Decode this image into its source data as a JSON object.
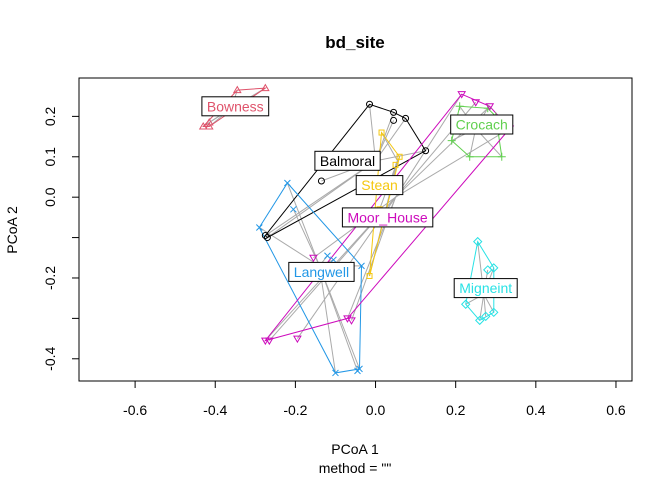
{
  "chart_data": {
    "type": "scatter",
    "title": "bd_site",
    "xlabel": "PCoA 1",
    "ylabel": "PCoA 2",
    "sublabel": "method = \"\"",
    "xlim": [
      -0.74,
      0.64
    ],
    "ylim": [
      -0.455,
      0.295
    ],
    "xticks": [
      -0.6,
      -0.4,
      -0.2,
      0.0,
      0.2,
      0.4,
      0.6
    ],
    "xtick_labels": [
      "-0.6",
      "-0.4",
      "-0.2",
      "0.0",
      "0.2",
      "0.4",
      "0.6"
    ],
    "yticks": [
      -0.4,
      -0.3,
      -0.2,
      -0.1,
      0.0,
      0.1,
      0.2
    ],
    "ytick_labels": [
      "-0.4",
      "",
      "-0.2",
      "",
      "0.0",
      "0.1",
      "0.2"
    ],
    "segment_color": "#aaaaaa",
    "series": [
      {
        "name": "Balmoral",
        "color": "#000000",
        "marker": "circle",
        "centroid": [
          -0.0,
          0.09
        ],
        "label_pos": [
          -0.07,
          0.09
        ],
        "points": [
          [
            -0.27,
            -0.1
          ],
          [
            -0.275,
            -0.095
          ],
          [
            -0.135,
            0.04
          ],
          [
            -0.015,
            0.23
          ],
          [
            0.045,
            0.21
          ],
          [
            0.045,
            0.19
          ],
          [
            0.075,
            0.195
          ],
          [
            0.125,
            0.115
          ]
        ],
        "hull": [
          [
            -0.27,
            -0.1
          ],
          [
            -0.275,
            -0.095
          ],
          [
            -0.015,
            0.23
          ],
          [
            0.045,
            0.21
          ],
          [
            0.075,
            0.195
          ],
          [
            0.125,
            0.115
          ]
        ]
      },
      {
        "name": "Bowness",
        "color": "#df536b",
        "marker": "triangle-up",
        "centroid": [
          -0.36,
          0.22
        ],
        "label_pos": [
          -0.35,
          0.225
        ],
        "points": [
          [
            -0.43,
            0.175
          ],
          [
            -0.415,
            0.175
          ],
          [
            -0.345,
            0.265
          ],
          [
            -0.275,
            0.27
          ],
          [
            -0.415,
            0.185
          ]
        ],
        "hull": [
          [
            -0.43,
            0.175
          ],
          [
            -0.415,
            0.175
          ],
          [
            -0.275,
            0.27
          ],
          [
            -0.345,
            0.265
          ]
        ]
      },
      {
        "name": "Crocach",
        "color": "#61d04f",
        "marker": "plus",
        "centroid": [
          0.25,
          0.17
        ],
        "label_pos": [
          0.265,
          0.18
        ],
        "points": [
          [
            0.21,
            0.225
          ],
          [
            0.19,
            0.14
          ],
          [
            0.235,
            0.1
          ],
          [
            0.315,
            0.1
          ],
          [
            0.28,
            0.22
          ],
          [
            0.3,
            0.2
          ]
        ],
        "hull": [
          [
            0.21,
            0.225
          ],
          [
            0.28,
            0.22
          ],
          [
            0.3,
            0.2
          ],
          [
            0.315,
            0.1
          ],
          [
            0.235,
            0.1
          ],
          [
            0.19,
            0.14
          ]
        ]
      },
      {
        "name": "Langwell",
        "color": "#2297e6",
        "marker": "cross",
        "centroid": [
          -0.14,
          -0.17
        ],
        "label_pos": [
          -0.135,
          -0.185
        ],
        "points": [
          [
            -0.22,
            0.035
          ],
          [
            -0.205,
            -0.03
          ],
          [
            -0.29,
            -0.075
          ],
          [
            -0.12,
            -0.145
          ],
          [
            -0.105,
            -0.155
          ],
          [
            -0.1,
            -0.435
          ],
          [
            -0.045,
            -0.43
          ],
          [
            -0.04,
            -0.425
          ],
          [
            -0.035,
            -0.17
          ]
        ],
        "hull": [
          [
            -0.22,
            0.035
          ],
          [
            -0.035,
            -0.17
          ],
          [
            -0.04,
            -0.425
          ],
          [
            -0.1,
            -0.435
          ],
          [
            -0.29,
            -0.075
          ]
        ]
      },
      {
        "name": "Migneint",
        "color": "#28e2e5",
        "marker": "diamond",
        "centroid": [
          0.27,
          -0.24
        ],
        "label_pos": [
          0.275,
          -0.225
        ],
        "points": [
          [
            0.255,
            -0.11
          ],
          [
            0.295,
            -0.175
          ],
          [
            0.28,
            -0.18
          ],
          [
            0.225,
            -0.265
          ],
          [
            0.26,
            -0.305
          ],
          [
            0.275,
            -0.295
          ],
          [
            0.295,
            -0.285
          ]
        ],
        "hull": [
          [
            0.255,
            -0.11
          ],
          [
            0.295,
            -0.175
          ],
          [
            0.295,
            -0.285
          ],
          [
            0.26,
            -0.305
          ],
          [
            0.225,
            -0.265
          ]
        ]
      },
      {
        "name": "Moor_House",
        "color": "#cd0bbc",
        "marker": "triangle-down",
        "centroid": [
          0.05,
          -0.0
        ],
        "label_pos": [
          0.03,
          -0.05
        ],
        "points": [
          [
            -0.275,
            -0.355
          ],
          [
            -0.265,
            -0.355
          ],
          [
            -0.195,
            -0.35
          ],
          [
            -0.155,
            -0.15
          ],
          [
            -0.07,
            -0.3
          ],
          [
            -0.06,
            -0.305
          ],
          [
            0.215,
            0.255
          ],
          [
            0.25,
            0.235
          ],
          [
            0.285,
            0.225
          ],
          [
            0.335,
            0.17
          ]
        ],
        "hull": [
          [
            -0.275,
            -0.355
          ],
          [
            -0.07,
            -0.3
          ],
          [
            0.335,
            0.17
          ],
          [
            0.285,
            0.225
          ],
          [
            0.215,
            0.255
          ]
        ]
      },
      {
        "name": "Stean",
        "color": "#f5c710",
        "marker": "square",
        "centroid": [
          0.055,
          0.09
        ],
        "label_pos": [
          0.01,
          0.03
        ],
        "points": [
          [
            0.015,
            0.16
          ],
          [
            0.06,
            0.1
          ],
          [
            0.05,
            0.08
          ],
          [
            0.04,
            0.04
          ],
          [
            -0.015,
            -0.195
          ],
          [
            0.01,
            -0.03
          ]
        ],
        "hull": [
          [
            0.015,
            0.16
          ],
          [
            0.06,
            0.1
          ],
          [
            -0.015,
            -0.195
          ]
        ]
      }
    ]
  }
}
